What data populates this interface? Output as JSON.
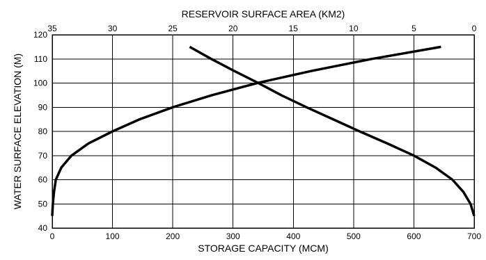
{
  "chart_data": {
    "type": "line",
    "top_xlabel": "RESERVOIR SURFACE AREA (KM2)",
    "bottom_xlabel": "STORAGE CAPACITY (MCM)",
    "ylabel": "WATER SURFACE ELEVATION (M)",
    "ylim": [
      40,
      120
    ],
    "yticks": [
      40,
      50,
      60,
      70,
      80,
      90,
      100,
      110,
      120
    ],
    "bottom_xlim": [
      0,
      700
    ],
    "bottom_xticks": [
      0,
      100,
      200,
      300,
      400,
      500,
      600,
      700
    ],
    "top_xlim": [
      35,
      0
    ],
    "top_xticks": [
      35,
      30,
      25,
      20,
      15,
      10,
      5,
      0
    ],
    "grid": true,
    "series": [
      {
        "axis": "bottom",
        "points": [
          {
            "x": 0,
            "y": 45
          },
          {
            "x": 1,
            "y": 50
          },
          {
            "x": 3,
            "y": 55
          },
          {
            "x": 6,
            "y": 60
          },
          {
            "x": 15,
            "y": 65
          },
          {
            "x": 32,
            "y": 70
          },
          {
            "x": 60,
            "y": 75
          },
          {
            "x": 100,
            "y": 80
          },
          {
            "x": 145,
            "y": 85
          },
          {
            "x": 200,
            "y": 90
          },
          {
            "x": 265,
            "y": 95
          },
          {
            "x": 340,
            "y": 100
          },
          {
            "x": 430,
            "y": 105
          },
          {
            "x": 530,
            "y": 110
          },
          {
            "x": 645,
            "y": 115
          }
        ]
      },
      {
        "axis": "top",
        "points": [
          {
            "x": 0,
            "y": 45
          },
          {
            "x": 0.3,
            "y": 50
          },
          {
            "x": 0.9,
            "y": 55
          },
          {
            "x": 1.8,
            "y": 60
          },
          {
            "x": 3.2,
            "y": 65
          },
          {
            "x": 5.0,
            "y": 70
          },
          {
            "x": 7.2,
            "y": 75
          },
          {
            "x": 9.5,
            "y": 80
          },
          {
            "x": 11.7,
            "y": 85
          },
          {
            "x": 13.9,
            "y": 90
          },
          {
            "x": 16.0,
            "y": 95
          },
          {
            "x": 17.9,
            "y": 100
          },
          {
            "x": 19.9,
            "y": 105
          },
          {
            "x": 21.8,
            "y": 110
          },
          {
            "x": 23.6,
            "y": 115
          }
        ]
      }
    ]
  }
}
